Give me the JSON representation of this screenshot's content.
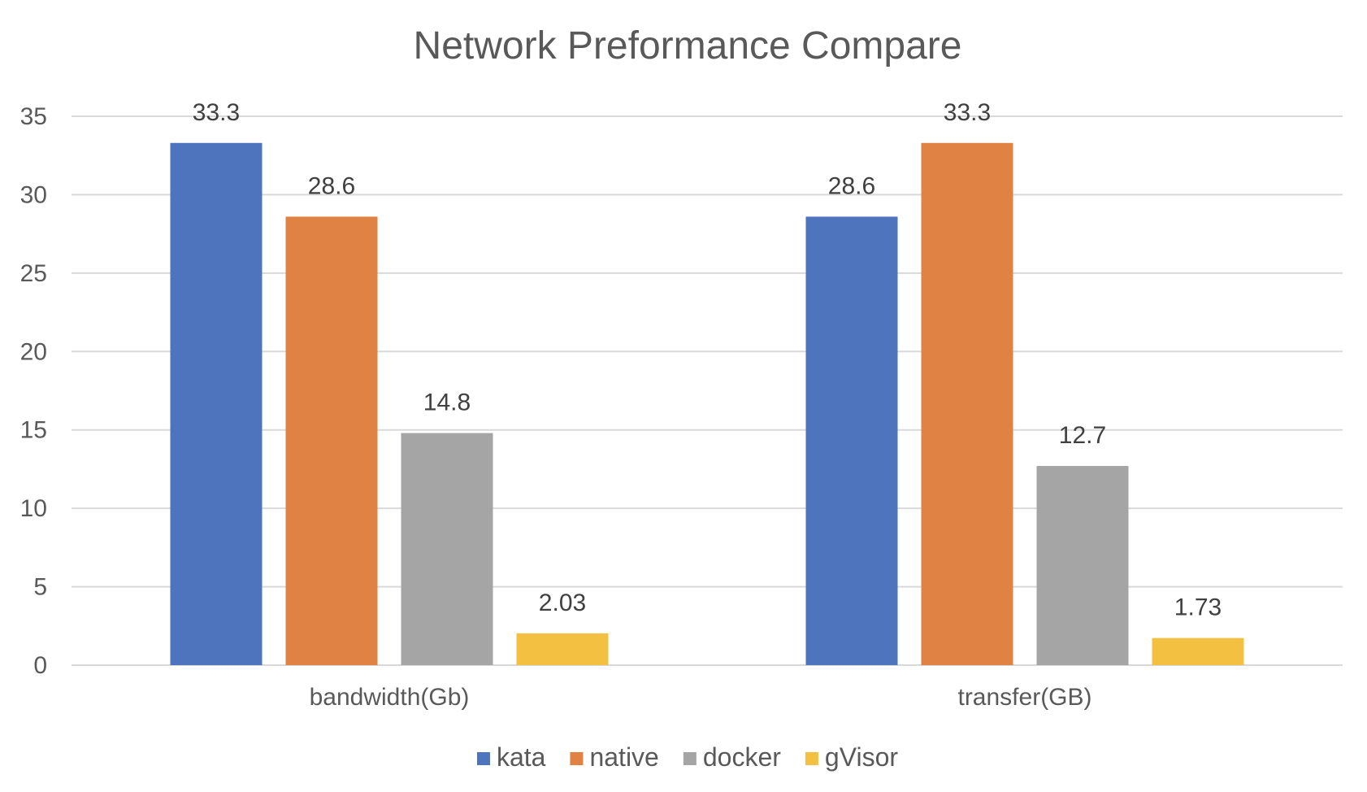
{
  "chart_data": {
    "type": "bar",
    "title": "Network Preformance Compare",
    "categories": [
      "bandwidth(Gb)",
      "transfer(GB)"
    ],
    "series": [
      {
        "name": "kata",
        "values": [
          33.3,
          28.6
        ],
        "labels": [
          "33.3",
          "28.6"
        ],
        "color": "#4e74be"
      },
      {
        "name": "native",
        "values": [
          28.6,
          33.3
        ],
        "labels": [
          "28.6",
          "33.3"
        ],
        "color": "#df8244"
      },
      {
        "name": "docker",
        "values": [
          14.8,
          12.7
        ],
        "labels": [
          "14.8",
          "12.7"
        ],
        "color": "#a5a5a5"
      },
      {
        "name": "gVisor",
        "values": [
          2.03,
          1.73
        ],
        "labels": [
          "2.03",
          "1.73"
        ],
        "color": "#f4c042"
      }
    ],
    "ylim": [
      0,
      35
    ],
    "yticks": [
      "0",
      "5",
      "10",
      "15",
      "20",
      "25",
      "30",
      "35"
    ],
    "grid": true,
    "legend": "bottom"
  }
}
